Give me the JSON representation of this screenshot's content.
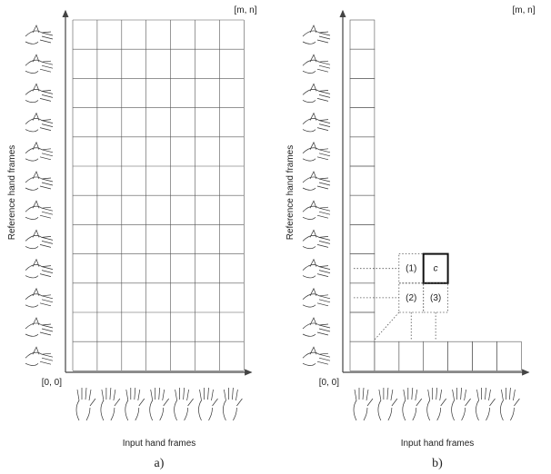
{
  "panels": [
    {
      "label": "a)",
      "origin": "[0, 0]",
      "corner": "[m, n]",
      "y_axis": "Reference hand frames",
      "x_axis": "Input hand frames"
    },
    {
      "label": "b)",
      "origin": "[0, 0]",
      "corner": "[m, n]",
      "y_axis": "Reference hand frames",
      "x_axis": "Input hand frames",
      "cells": [
        "(1)",
        "c",
        "(2)",
        "(3)"
      ]
    }
  ]
}
